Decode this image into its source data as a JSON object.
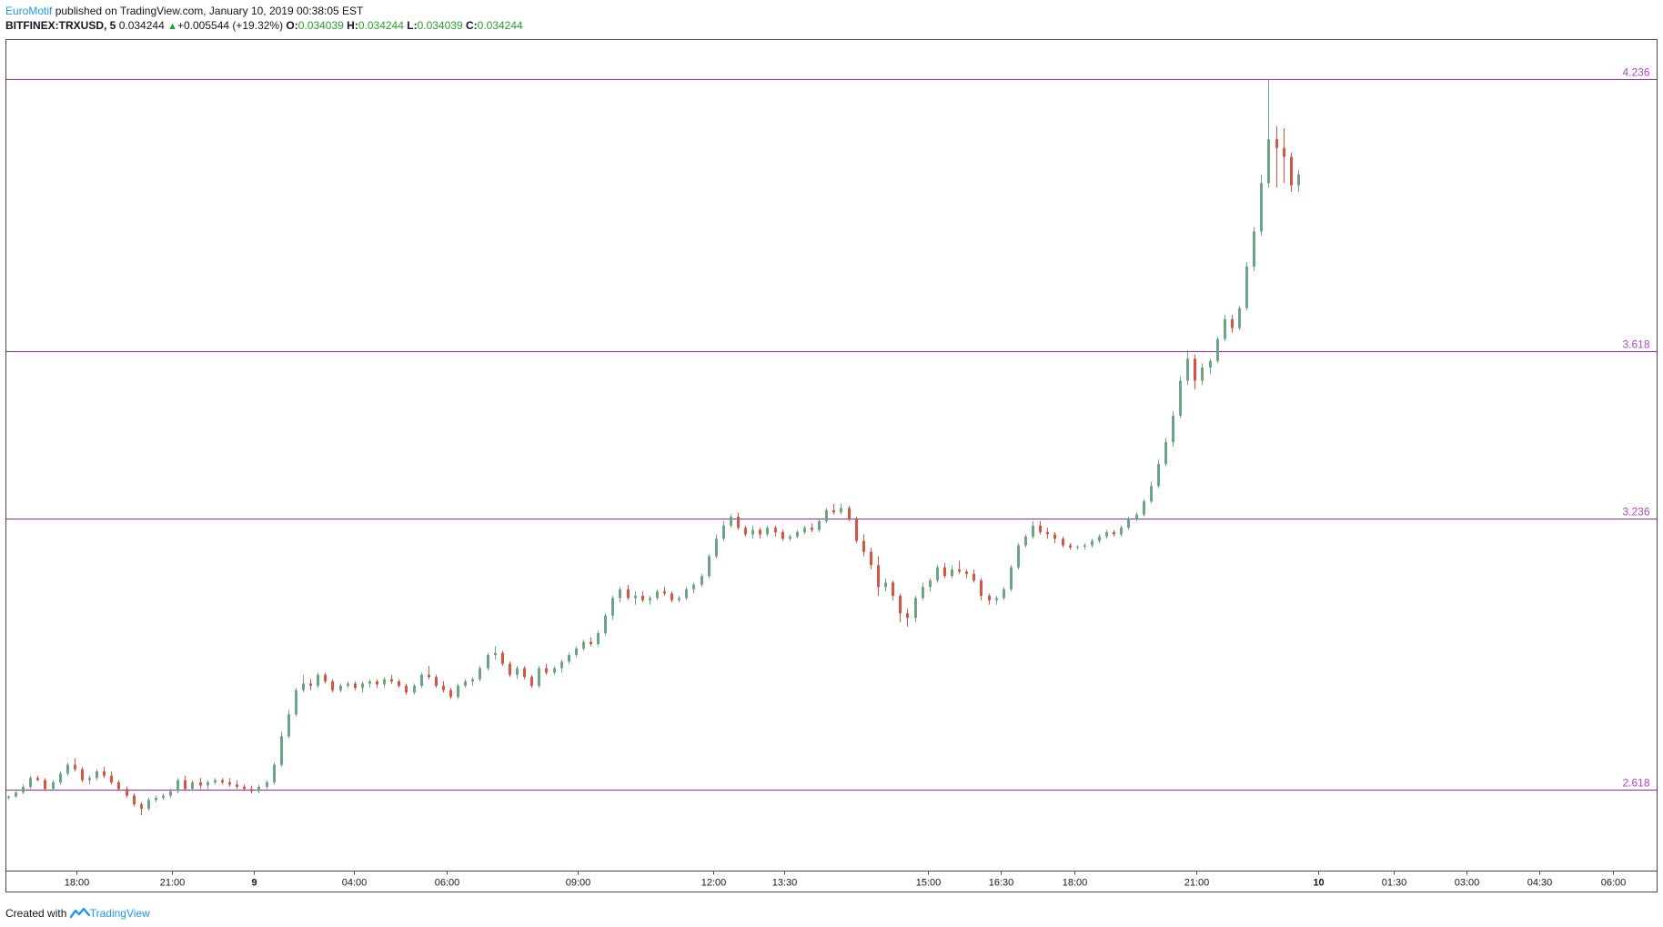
{
  "header": {
    "author": "EuroMotif",
    "published": "published on TradingView.com, January 10, 2019 00:38:05 EST",
    "symbol": "BITFINEX:TRXUSD, 5",
    "last": "0.034244",
    "change": "+0.005544 (+19.32%)",
    "o_label": "O:",
    "o_value": "0.034039",
    "h_label": "H:",
    "h_value": "0.034244",
    "l_label": "L:",
    "l_value": "0.034039",
    "c_label": "C:",
    "c_value": "0.034244"
  },
  "footer": {
    "created_with": "Created with",
    "brand": "TradingView"
  },
  "colors": {
    "up": "#6ba583",
    "down": "#d75442",
    "level": "#9c27b0",
    "level_label": "#ab47bc",
    "axis": "#4a4a4a"
  },
  "chart_data": {
    "type": "candlestick",
    "x_tick_labels": [
      "18:00",
      "21:00",
      "9",
      "04:00",
      "06:00",
      "09:00",
      "12:00",
      "13:30",
      "15:00",
      "16:30",
      "18:00",
      "21:00",
      "10",
      "01:30",
      "03:00",
      "04:30",
      "06:00"
    ],
    "x_tick_positions": [
      3.2,
      7.5,
      11.2,
      15.7,
      19.9,
      25.8,
      31.9,
      35.1,
      41.6,
      44.9,
      48.2,
      53.7,
      59.2,
      62.6,
      65.9,
      69.2,
      72.5
    ],
    "x_range": [
      0,
      74.5
    ],
    "y_range": [
      2.433,
      4.327
    ],
    "fib_levels": [
      {
        "value": 4.236,
        "label": "4.236"
      },
      {
        "value": 3.618,
        "label": "3.618"
      },
      {
        "value": 3.236,
        "label": "3.236"
      },
      {
        "value": 2.618,
        "label": "2.618"
      }
    ],
    "candles_ohlc": [
      [
        2.6,
        2.605,
        2.595,
        2.603
      ],
      [
        2.603,
        2.615,
        2.6,
        2.612
      ],
      [
        2.612,
        2.63,
        2.608,
        2.625
      ],
      [
        2.625,
        2.65,
        2.62,
        2.645
      ],
      [
        2.645,
        2.65,
        2.638,
        2.64
      ],
      [
        2.64,
        2.645,
        2.615,
        2.62
      ],
      [
        2.62,
        2.64,
        2.615,
        2.635
      ],
      [
        2.635,
        2.66,
        2.63,
        2.655
      ],
      [
        2.655,
        2.68,
        2.65,
        2.675
      ],
      [
        2.675,
        2.69,
        2.66,
        2.665
      ],
      [
        2.665,
        2.67,
        2.635,
        2.64
      ],
      [
        2.64,
        2.65,
        2.63,
        2.645
      ],
      [
        2.645,
        2.665,
        2.64,
        2.66
      ],
      [
        2.66,
        2.67,
        2.645,
        2.65
      ],
      [
        2.65,
        2.66,
        2.63,
        2.635
      ],
      [
        2.635,
        2.64,
        2.615,
        2.62
      ],
      [
        2.62,
        2.625,
        2.6,
        2.605
      ],
      [
        2.605,
        2.61,
        2.58,
        2.585
      ],
      [
        2.585,
        2.59,
        2.56,
        2.575
      ],
      [
        2.575,
        2.6,
        2.57,
        2.595
      ],
      [
        2.595,
        2.605,
        2.59,
        2.6
      ],
      [
        2.6,
        2.61,
        2.595,
        2.605
      ],
      [
        2.605,
        2.62,
        2.6,
        2.615
      ],
      [
        2.615,
        2.645,
        2.61,
        2.64
      ],
      [
        2.64,
        2.65,
        2.615,
        2.62
      ],
      [
        2.62,
        2.64,
        2.615,
        2.635
      ],
      [
        2.635,
        2.645,
        2.62,
        2.628
      ],
      [
        2.628,
        2.64,
        2.62,
        2.635
      ],
      [
        2.635,
        2.645,
        2.63,
        2.64
      ],
      [
        2.64,
        2.645,
        2.63,
        2.635
      ],
      [
        2.635,
        2.645,
        2.625,
        2.63
      ],
      [
        2.63,
        2.64,
        2.62,
        2.625
      ],
      [
        2.625,
        2.63,
        2.615,
        2.62
      ],
      [
        2.62,
        2.628,
        2.61,
        2.615
      ],
      [
        2.615,
        2.63,
        2.61,
        2.625
      ],
      [
        2.625,
        2.64,
        2.62,
        2.635
      ],
      [
        2.635,
        2.68,
        2.63,
        2.675
      ],
      [
        2.675,
        2.75,
        2.67,
        2.74
      ],
      [
        2.74,
        2.8,
        2.735,
        2.79
      ],
      [
        2.79,
        2.85,
        2.785,
        2.845
      ],
      [
        2.845,
        2.88,
        2.84,
        2.86
      ],
      [
        2.86,
        2.87,
        2.845,
        2.855
      ],
      [
        2.855,
        2.885,
        2.85,
        2.88
      ],
      [
        2.88,
        2.885,
        2.86,
        2.865
      ],
      [
        2.865,
        2.87,
        2.84,
        2.845
      ],
      [
        2.845,
        2.86,
        2.84,
        2.855
      ],
      [
        2.855,
        2.865,
        2.85,
        2.86
      ],
      [
        2.86,
        2.865,
        2.845,
        2.85
      ],
      [
        2.85,
        2.865,
        2.84,
        2.86
      ],
      [
        2.86,
        2.87,
        2.85,
        2.865
      ],
      [
        2.865,
        2.87,
        2.85,
        2.858
      ],
      [
        2.858,
        2.875,
        2.85,
        2.87
      ],
      [
        2.87,
        2.88,
        2.86,
        2.865
      ],
      [
        2.865,
        2.87,
        2.85,
        2.855
      ],
      [
        2.855,
        2.86,
        2.835,
        2.84
      ],
      [
        2.84,
        2.86,
        2.835,
        2.855
      ],
      [
        2.855,
        2.885,
        2.85,
        2.88
      ],
      [
        2.88,
        2.9,
        2.87,
        2.875
      ],
      [
        2.875,
        2.88,
        2.85,
        2.855
      ],
      [
        2.855,
        2.865,
        2.84,
        2.845
      ],
      [
        2.845,
        2.85,
        2.825,
        2.83
      ],
      [
        2.83,
        2.86,
        2.825,
        2.855
      ],
      [
        2.855,
        2.87,
        2.85,
        2.865
      ],
      [
        2.865,
        2.875,
        2.855,
        2.87
      ],
      [
        2.87,
        2.9,
        2.865,
        2.895
      ],
      [
        2.895,
        2.93,
        2.89,
        2.925
      ],
      [
        2.925,
        2.945,
        2.915,
        2.93
      ],
      [
        2.93,
        2.935,
        2.9,
        2.905
      ],
      [
        2.905,
        2.91,
        2.875,
        2.88
      ],
      [
        2.88,
        2.9,
        2.87,
        2.895
      ],
      [
        2.895,
        2.9,
        2.87,
        2.875
      ],
      [
        2.875,
        2.88,
        2.85,
        2.855
      ],
      [
        2.855,
        2.9,
        2.85,
        2.895
      ],
      [
        2.895,
        2.905,
        2.88,
        2.885
      ],
      [
        2.885,
        2.9,
        2.88,
        2.895
      ],
      [
        2.895,
        2.915,
        2.885,
        2.91
      ],
      [
        2.91,
        2.93,
        2.905,
        2.925
      ],
      [
        2.925,
        2.945,
        2.92,
        2.94
      ],
      [
        2.94,
        2.96,
        2.935,
        2.955
      ],
      [
        2.955,
        2.965,
        2.945,
        2.95
      ],
      [
        2.95,
        2.98,
        2.945,
        2.975
      ],
      [
        2.975,
        3.02,
        2.97,
        3.015
      ],
      [
        3.015,
        3.06,
        3.005,
        3.055
      ],
      [
        3.055,
        3.08,
        3.045,
        3.075
      ],
      [
        3.075,
        3.085,
        3.05,
        3.055
      ],
      [
        3.055,
        3.07,
        3.04,
        3.06
      ],
      [
        3.06,
        3.07,
        3.045,
        3.05
      ],
      [
        3.05,
        3.06,
        3.04,
        3.055
      ],
      [
        3.055,
        3.075,
        3.05,
        3.07
      ],
      [
        3.07,
        3.08,
        3.06,
        3.065
      ],
      [
        3.065,
        3.07,
        3.045,
        3.05
      ],
      [
        3.05,
        3.06,
        3.045,
        3.055
      ],
      [
        3.055,
        3.08,
        3.05,
        3.075
      ],
      [
        3.075,
        3.09,
        3.065,
        3.085
      ],
      [
        3.085,
        3.11,
        3.08,
        3.105
      ],
      [
        3.105,
        3.155,
        3.1,
        3.15
      ],
      [
        3.15,
        3.2,
        3.145,
        3.19
      ],
      [
        3.19,
        3.23,
        3.185,
        3.22
      ],
      [
        3.22,
        3.245,
        3.215,
        3.24
      ],
      [
        3.24,
        3.25,
        3.21,
        3.215
      ],
      [
        3.215,
        3.22,
        3.195,
        3.2
      ],
      [
        3.2,
        3.22,
        3.19,
        3.21
      ],
      [
        3.21,
        3.215,
        3.19,
        3.2
      ],
      [
        3.2,
        3.22,
        3.195,
        3.215
      ],
      [
        3.215,
        3.22,
        3.195,
        3.205
      ],
      [
        3.205,
        3.21,
        3.185,
        3.19
      ],
      [
        3.19,
        3.2,
        3.185,
        3.195
      ],
      [
        3.195,
        3.21,
        3.19,
        3.205
      ],
      [
        3.205,
        3.22,
        3.2,
        3.215
      ],
      [
        3.215,
        3.225,
        3.205,
        3.21
      ],
      [
        3.21,
        3.235,
        3.205,
        3.23
      ],
      [
        3.23,
        3.26,
        3.225,
        3.255
      ],
      [
        3.255,
        3.27,
        3.245,
        3.25
      ],
      [
        3.25,
        3.27,
        3.245,
        3.26
      ],
      [
        3.26,
        3.265,
        3.23,
        3.235
      ],
      [
        3.235,
        3.24,
        3.18,
        3.185
      ],
      [
        3.185,
        3.2,
        3.15,
        3.16
      ],
      [
        3.16,
        3.17,
        3.12,
        3.13
      ],
      [
        3.13,
        3.15,
        3.06,
        3.08
      ],
      [
        3.08,
        3.1,
        3.07,
        3.09
      ],
      [
        3.09,
        3.095,
        3.05,
        3.06
      ],
      [
        3.06,
        3.065,
        3.0,
        3.02
      ],
      [
        3.02,
        3.03,
        2.99,
        3.01
      ],
      [
        3.01,
        3.06,
        3.0,
        3.055
      ],
      [
        3.055,
        3.09,
        3.05,
        3.08
      ],
      [
        3.08,
        3.1,
        3.07,
        3.095
      ],
      [
        3.095,
        3.13,
        3.09,
        3.125
      ],
      [
        3.125,
        3.135,
        3.1,
        3.105
      ],
      [
        3.105,
        3.13,
        3.1,
        3.12
      ],
      [
        3.12,
        3.14,
        3.11,
        3.115
      ],
      [
        3.115,
        3.12,
        3.1,
        3.11
      ],
      [
        3.11,
        3.12,
        3.09,
        3.095
      ],
      [
        3.095,
        3.1,
        3.05,
        3.06
      ],
      [
        3.06,
        3.065,
        3.04,
        3.05
      ],
      [
        3.05,
        3.06,
        3.04,
        3.055
      ],
      [
        3.055,
        3.08,
        3.05,
        3.075
      ],
      [
        3.075,
        3.13,
        3.07,
        3.125
      ],
      [
        3.125,
        3.18,
        3.12,
        3.175
      ],
      [
        3.175,
        3.2,
        3.17,
        3.195
      ],
      [
        3.195,
        3.23,
        3.19,
        3.22
      ],
      [
        3.22,
        3.23,
        3.2,
        3.205
      ],
      [
        3.205,
        3.215,
        3.19,
        3.2
      ],
      [
        3.2,
        3.205,
        3.18,
        3.19
      ],
      [
        3.19,
        3.195,
        3.17,
        3.175
      ],
      [
        3.175,
        3.18,
        3.165,
        3.17
      ],
      [
        3.17,
        3.175,
        3.165,
        3.172
      ],
      [
        3.172,
        3.18,
        3.165,
        3.175
      ],
      [
        3.175,
        3.19,
        3.17,
        3.185
      ],
      [
        3.185,
        3.2,
        3.18,
        3.195
      ],
      [
        3.195,
        3.21,
        3.19,
        3.205
      ],
      [
        3.205,
        3.21,
        3.195,
        3.2
      ],
      [
        3.2,
        3.22,
        3.195,
        3.215
      ],
      [
        3.215,
        3.24,
        3.21,
        3.235
      ],
      [
        3.235,
        3.25,
        3.23,
        3.245
      ],
      [
        3.245,
        3.28,
        3.24,
        3.275
      ],
      [
        3.275,
        3.32,
        3.27,
        3.31
      ],
      [
        3.31,
        3.37,
        3.305,
        3.36
      ],
      [
        3.36,
        3.42,
        3.355,
        3.41
      ],
      [
        3.41,
        3.48,
        3.4,
        3.47
      ],
      [
        3.47,
        3.56,
        3.465,
        3.55
      ],
      [
        3.55,
        3.62,
        3.54,
        3.6
      ],
      [
        3.6,
        3.61,
        3.53,
        3.55
      ],
      [
        3.55,
        3.59,
        3.54,
        3.58
      ],
      [
        3.58,
        3.6,
        3.565,
        3.595
      ],
      [
        3.595,
        3.65,
        3.59,
        3.645
      ],
      [
        3.645,
        3.7,
        3.64,
        3.69
      ],
      [
        3.69,
        3.7,
        3.66,
        3.67
      ],
      [
        3.67,
        3.72,
        3.665,
        3.715
      ],
      [
        3.715,
        3.82,
        3.71,
        3.81
      ],
      [
        3.81,
        3.9,
        3.8,
        3.89
      ],
      [
        3.89,
        4.02,
        3.88,
        4.0
      ],
      [
        4.0,
        4.236,
        3.99,
        4.1
      ],
      [
        4.1,
        4.13,
        3.99,
        4.08
      ],
      [
        4.08,
        4.125,
        4.0,
        4.06
      ],
      [
        4.06,
        4.07,
        3.98,
        3.995
      ],
      [
        3.995,
        4.03,
        3.98,
        4.02
      ]
    ]
  }
}
